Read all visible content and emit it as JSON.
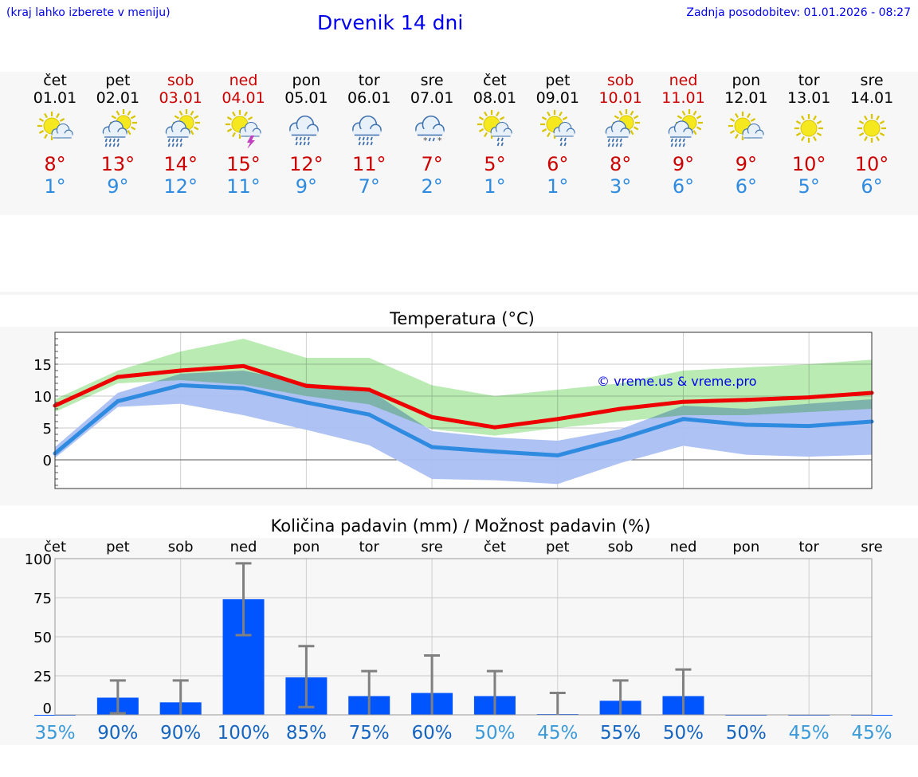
{
  "header": {
    "hint": "(kraj lahko izberete v meniju)",
    "title": "Drvenik 14 dni",
    "updated": "Zadnja posodobitev: 01.01.2026 - 08:27"
  },
  "colors": {
    "weekday": "#000000",
    "weekend": "#cc0000",
    "max_line": "#ee0000",
    "min_line": "#2f8be0",
    "max_range": "#a8e6a0",
    "min_range": "#aabff3",
    "bar": "#0055ff",
    "error_bar": "#808080",
    "prob_high": "#1565c0",
    "prob_low": "#3a9ad9"
  },
  "days": [
    {
      "name": "čet",
      "date": "01.01",
      "weekend": false,
      "icon": "sun-cloud-icon",
      "tmax": "8°",
      "tmin": "1°"
    },
    {
      "name": "pet",
      "date": "02.01",
      "weekend": false,
      "icon": "sun-cloud-rain-icon",
      "tmax": "13°",
      "tmin": "9°"
    },
    {
      "name": "sob",
      "date": "03.01",
      "weekend": true,
      "icon": "sun-cloud-rain-icon",
      "tmax": "14°",
      "tmin": "12°"
    },
    {
      "name": "ned",
      "date": "04.01",
      "weekend": true,
      "icon": "sun-cloud-thunder-icon",
      "tmax": "15°",
      "tmin": "11°"
    },
    {
      "name": "pon",
      "date": "05.01",
      "weekend": false,
      "icon": "cloud-rain-icon",
      "tmax": "12°",
      "tmin": "9°"
    },
    {
      "name": "tor",
      "date": "06.01",
      "weekend": false,
      "icon": "cloud-rain-icon",
      "tmax": "11°",
      "tmin": "7°"
    },
    {
      "name": "sre",
      "date": "07.01",
      "weekend": false,
      "icon": "cloud-snow-icon",
      "tmax": "7°",
      "tmin": "2°"
    },
    {
      "name": "čet",
      "date": "08.01",
      "weekend": false,
      "icon": "sun-cloud-light-rain-icon",
      "tmax": "5°",
      "tmin": "1°"
    },
    {
      "name": "pet",
      "date": "09.01",
      "weekend": false,
      "icon": "sun-cloud-light-rain-icon",
      "tmax": "6°",
      "tmin": "1°"
    },
    {
      "name": "sob",
      "date": "10.01",
      "weekend": true,
      "icon": "sun-cloud-rain-icon",
      "tmax": "8°",
      "tmin": "3°"
    },
    {
      "name": "ned",
      "date": "11.01",
      "weekend": true,
      "icon": "sun-cloud-rain-icon",
      "tmax": "9°",
      "tmin": "6°"
    },
    {
      "name": "pon",
      "date": "12.01",
      "weekend": false,
      "icon": "sun-small-cloud-icon",
      "tmax": "9°",
      "tmin": "6°"
    },
    {
      "name": "tor",
      "date": "13.01",
      "weekend": false,
      "icon": "sun-icon",
      "tmax": "10°",
      "tmin": "5°"
    },
    {
      "name": "sre",
      "date": "14.01",
      "weekend": false,
      "icon": "sun-icon",
      "tmax": "10°",
      "tmin": "6°"
    }
  ],
  "chart_data": [
    {
      "type": "line",
      "title": "Temperatura (°C)",
      "watermark": "© vreme.us & vreme.pro",
      "xlabel": "",
      "ylabel": "",
      "ylim": [
        -4.5,
        20
      ],
      "yticks": [
        0,
        5,
        10,
        15
      ],
      "x": [
        0,
        1,
        2,
        3,
        4,
        5,
        6,
        7,
        8,
        9,
        10,
        11,
        12,
        13
      ],
      "series": [
        {
          "name": "max",
          "values": [
            8.5,
            13,
            14,
            14.7,
            11.6,
            11,
            6.7,
            5.1,
            6.4,
            8,
            9.1,
            9.4,
            9.8,
            10.5
          ]
        },
        {
          "name": "min",
          "values": [
            1,
            9.2,
            11.7,
            11.2,
            9,
            7.1,
            2,
            1.3,
            0.7,
            3.3,
            6.4,
            5.5,
            5.3,
            6
          ]
        }
      ],
      "ranges": [
        {
          "name": "max-range",
          "upper": [
            9.5,
            14,
            17,
            19,
            16,
            16,
            11.7,
            10,
            11,
            12,
            14,
            14.5,
            15,
            15.7
          ],
          "lower": [
            7.5,
            12,
            12.5,
            11.8,
            10,
            8.7,
            4.8,
            3.8,
            5,
            6,
            7,
            7,
            7.5,
            8
          ]
        },
        {
          "name": "min-range",
          "upper": [
            2,
            10.5,
            13.5,
            14,
            12,
            11,
            4.5,
            3.5,
            3,
            4.8,
            8.5,
            8,
            8.8,
            9.5
          ],
          "lower": [
            0.3,
            8.3,
            8.8,
            7,
            4.7,
            2.3,
            -3,
            -3.2,
            -3.8,
            -0.5,
            2.2,
            0.8,
            0.5,
            0.8
          ]
        }
      ]
    },
    {
      "type": "bar",
      "title": "Količina padavin (mm) / Možnost padavin (%)",
      "xlabel": "",
      "ylabel": "",
      "ylim": [
        0,
        100
      ],
      "yticks": [
        0,
        25,
        50,
        75,
        100
      ],
      "categories": [
        "čet",
        "pet",
        "sob",
        "ned",
        "pon",
        "tor",
        "sre",
        "čet",
        "pet",
        "sob",
        "ned",
        "pon",
        "tor",
        "sre"
      ],
      "values": [
        0,
        11,
        8,
        74,
        24,
        12,
        14,
        12,
        0.5,
        9,
        12,
        0,
        0,
        0
      ],
      "error_low": [
        0,
        1,
        0,
        51,
        5,
        0,
        0,
        0,
        0,
        0,
        0,
        0,
        0,
        0
      ],
      "error_high": [
        0,
        22,
        22,
        97,
        44,
        28,
        38,
        28,
        14,
        22,
        29,
        0,
        0,
        0
      ],
      "probabilities": [
        "35%",
        "90%",
        "90%",
        "100%",
        "85%",
        "75%",
        "60%",
        "50%",
        "45%",
        "55%",
        "50%",
        "50%",
        "45%",
        "45%"
      ],
      "probability_levels": [
        "low",
        "high",
        "high",
        "high",
        "high",
        "high",
        "high",
        "low",
        "low",
        "high",
        "high",
        "high",
        "low",
        "low"
      ]
    }
  ]
}
